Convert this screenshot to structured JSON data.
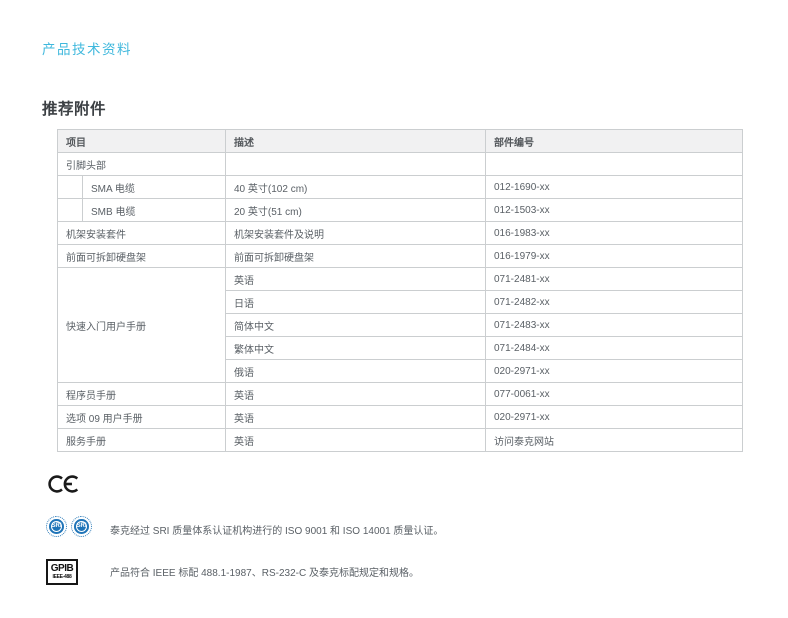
{
  "page": {
    "doc_type_label": "产品技术资料",
    "section_title": "推荐附件"
  },
  "accessories_table": {
    "columns": [
      "项目",
      "描述",
      "部件编号"
    ],
    "rows": [
      {
        "kind": "group",
        "item": "引脚头部",
        "desc": "",
        "part": ""
      },
      {
        "kind": "sub",
        "item": "SMA 电缆",
        "desc": "40 英寸(102 cm)",
        "part": "012-1690-xx"
      },
      {
        "kind": "sub",
        "item": "SMB 电缆",
        "desc": "20 英寸(51 cm)",
        "part": "012-1503-xx"
      },
      {
        "kind": "normal",
        "item": "机架安装套件",
        "desc": "机架安装套件及说明",
        "part": "016-1983-xx"
      },
      {
        "kind": "normal",
        "item": "前面可拆卸硬盘架",
        "desc": "前面可拆卸硬盘架",
        "part": "016-1979-xx"
      },
      {
        "kind": "rowspan-start",
        "item": "快速入门用户手册",
        "span": 5,
        "desc": "英语",
        "part": "071-2481-xx"
      },
      {
        "kind": "continuation",
        "desc": "日语",
        "part": "071-2482-xx"
      },
      {
        "kind": "continuation",
        "desc": "简体中文",
        "part": "071-2483-xx"
      },
      {
        "kind": "continuation",
        "desc": "繁体中文",
        "part": "071-2484-xx"
      },
      {
        "kind": "continuation",
        "desc": "俄语",
        "part": "020-2971-xx"
      },
      {
        "kind": "normal",
        "item": "程序员手册",
        "desc": "英语",
        "part": "077-0061-xx"
      },
      {
        "kind": "normal",
        "item": "选项 09 用户手册",
        "desc": "英语",
        "part": "020-2971-xx"
      },
      {
        "kind": "normal",
        "item": "服务手册",
        "desc": "英语",
        "part": "访问泰克网站"
      }
    ]
  },
  "compliance": {
    "ce_label": "CE",
    "sri_label": "SRI",
    "iso_text": "泰克经过 SRI 质量体系认证机构进行的 ISO 9001 和 ISO 14001 质量认证。",
    "gpib_label": "GPIB",
    "gpib_sub_label": "IEEE-488",
    "gpib_text": "产品符合 IEEE 标配 488.1-1987、RS-232-C 及泰克标配规定和规格。"
  },
  "colors": {
    "accent_cyan": "#3fb8dd",
    "sri_blue": "#1f74b8",
    "table_border": "#cbced0",
    "header_bg": "#f1f1f2",
    "text_gray": "#5a6066"
  }
}
